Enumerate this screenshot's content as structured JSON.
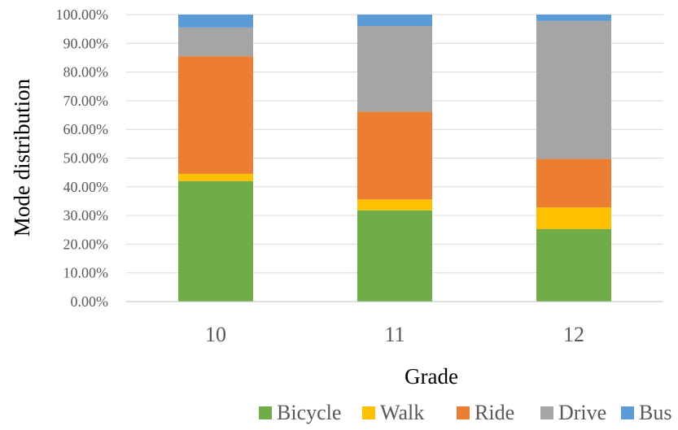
{
  "chart_data": {
    "type": "bar",
    "stacked": true,
    "normalized": true,
    "categories": [
      "10",
      "11",
      "12"
    ],
    "series": [
      {
        "name": "Bicycle",
        "color": "#70ad47",
        "values": [
          42.0,
          31.8,
          25.3
        ]
      },
      {
        "name": "Walk",
        "color": "#ffc000",
        "values": [
          2.5,
          3.8,
          7.5
        ]
      },
      {
        "name": "Ride",
        "color": "#ed7d31",
        "values": [
          41.0,
          30.6,
          16.9
        ]
      },
      {
        "name": "Drive",
        "color": "#a5a5a5",
        "values": [
          10.0,
          29.8,
          48.1
        ]
      },
      {
        "name": "Bus",
        "color": "#5b9bd5",
        "values": [
          4.5,
          4.0,
          2.2
        ]
      }
    ],
    "xlabel": "Grade",
    "ylabel": "Mode distribution",
    "ylim": [
      0,
      100
    ],
    "yticks": [
      "0.00%",
      "10.00%",
      "20.00%",
      "30.00%",
      "40.00%",
      "50.00%",
      "60.00%",
      "70.00%",
      "80.00%",
      "90.00%",
      "100.00%"
    ],
    "grid": true,
    "legend_position": "bottom"
  }
}
